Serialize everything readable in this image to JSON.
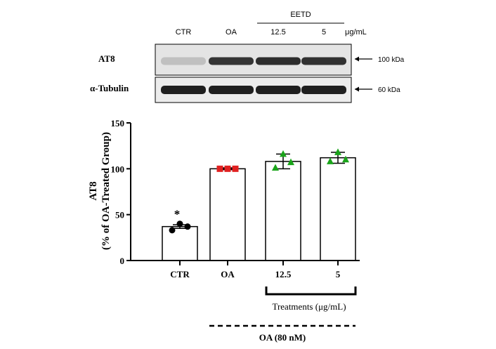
{
  "blot": {
    "group_header": "EETD",
    "lanes": [
      "CTR",
      "OA",
      "12.5",
      "5"
    ],
    "unit": "μg/mL",
    "rows": [
      {
        "label": "AT8",
        "size": "100 kDa",
        "intensity": [
          0.18,
          0.85,
          0.88,
          0.86
        ]
      },
      {
        "label": "α-Tubulin",
        "size": "60 kDa",
        "intensity": [
          0.95,
          0.95,
          0.95,
          0.95
        ]
      }
    ]
  },
  "chart_data": {
    "type": "bar",
    "categories": [
      "CTR",
      "OA",
      "12.5",
      "5"
    ],
    "values": [
      37,
      100,
      108,
      112
    ],
    "errors": [
      2,
      1,
      8,
      6
    ],
    "points": [
      [
        33,
        40,
        37
      ],
      [
        100,
        100,
        100
      ],
      [
        101,
        116,
        107
      ],
      [
        108,
        118,
        110
      ]
    ],
    "point_colors": [
      "#000000",
      "#e02020",
      "#1aa41a",
      "#1aa41a"
    ],
    "point_shapes": [
      "circle",
      "square",
      "triangle",
      "triangle"
    ],
    "ylim": [
      0,
      150
    ],
    "yticks": [
      0,
      50,
      100,
      150
    ],
    "ylabel_line1": "AT8",
    "ylabel_line2": "(% of OA-Treated Group)",
    "significance": [
      "*",
      "",
      "",
      ""
    ],
    "bracket_label": "Treatments (μg/mL)",
    "dashed_label": "OA (80 nM)"
  }
}
